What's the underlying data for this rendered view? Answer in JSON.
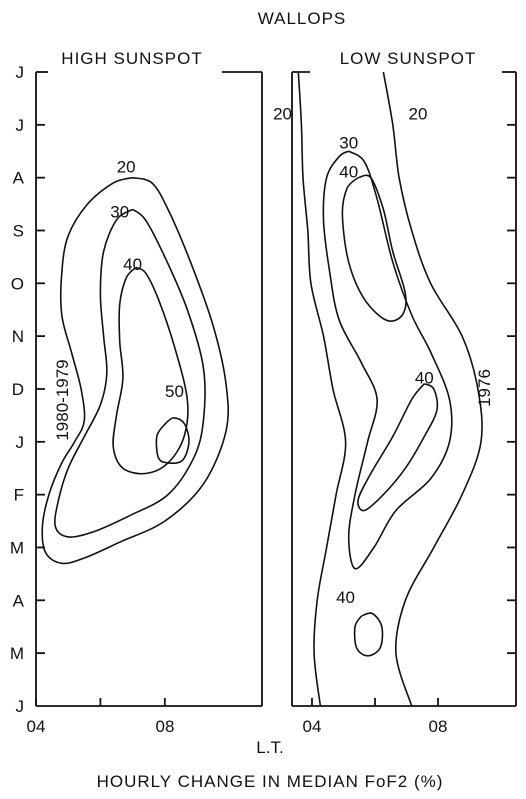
{
  "chart_data": {
    "type": "contour",
    "title": "WALLOPS",
    "caption": "HOURLY CHANGE IN MEDIAN FoF2 (%)",
    "xlabel": "L.T.",
    "colors": {
      "ink": "#111111",
      "background": "#ffffff"
    },
    "panels": [
      {
        "title": "HIGH SUNSPOT",
        "year_label": "1980-1979",
        "x_ticks": [
          "04",
          "08"
        ],
        "y_ticks": [
          "J",
          "J",
          "A",
          "S",
          "O",
          "N",
          "D",
          "J",
          "F",
          "M",
          "A",
          "M",
          "J"
        ],
        "xlim": [
          3,
          10
        ],
        "contours": [
          {
            "level": "20",
            "points": [
              [
                6.0,
                2.0
              ],
              [
                5.4,
                2.1
              ],
              [
                4.6,
                2.5
              ],
              [
                4.0,
                3.1
              ],
              [
                3.8,
                3.8
              ],
              [
                3.8,
                4.6
              ],
              [
                4.1,
                5.3
              ],
              [
                4.4,
                6.0
              ],
              [
                4.5,
                6.6
              ],
              [
                4.2,
                7.0
              ],
              [
                3.8,
                7.4
              ],
              [
                3.4,
                8.0
              ],
              [
                3.2,
                8.6
              ],
              [
                3.3,
                9.1
              ],
              [
                3.8,
                9.3
              ],
              [
                4.5,
                9.2
              ],
              [
                5.6,
                8.9
              ],
              [
                7.0,
                8.5
              ],
              [
                8.2,
                7.8
              ],
              [
                8.9,
                6.8
              ],
              [
                8.9,
                5.9
              ],
              [
                8.5,
                4.8
              ],
              [
                7.8,
                3.6
              ],
              [
                7.1,
                2.6
              ],
              [
                6.6,
                2.1
              ],
              [
                6.0,
                2.0
              ]
            ]
          },
          {
            "level": "30",
            "points": [
              [
                6.0,
                2.6
              ],
              [
                5.5,
                2.8
              ],
              [
                5.1,
                3.4
              ],
              [
                5.0,
                4.2
              ],
              [
                5.1,
                5.0
              ],
              [
                5.2,
                5.7
              ],
              [
                5.0,
                6.3
              ],
              [
                4.5,
                6.9
              ],
              [
                4.0,
                7.5
              ],
              [
                3.7,
                8.1
              ],
              [
                3.6,
                8.6
              ],
              [
                4.0,
                8.8
              ],
              [
                4.8,
                8.7
              ],
              [
                5.9,
                8.4
              ],
              [
                7.1,
                8.0
              ],
              [
                7.9,
                7.3
              ],
              [
                8.2,
                6.6
              ],
              [
                8.2,
                5.6
              ],
              [
                7.7,
                4.5
              ],
              [
                7.0,
                3.5
              ],
              [
                6.4,
                2.8
              ],
              [
                6.0,
                2.6
              ]
            ]
          },
          {
            "level": "40",
            "points": [
              [
                6.1,
                3.7
              ],
              [
                5.8,
                3.9
              ],
              [
                5.6,
                4.4
              ],
              [
                5.6,
                5.1
              ],
              [
                5.7,
                5.8
              ],
              [
                5.5,
                6.5
              ],
              [
                5.4,
                7.1
              ],
              [
                5.7,
                7.5
              ],
              [
                6.4,
                7.6
              ],
              [
                7.1,
                7.4
              ],
              [
                7.6,
                6.9
              ],
              [
                7.7,
                6.2
              ],
              [
                7.3,
                5.2
              ],
              [
                6.8,
                4.3
              ],
              [
                6.4,
                3.8
              ],
              [
                6.1,
                3.7
              ]
            ]
          },
          {
            "level": "50",
            "points": [
              [
                6.95,
                6.7
              ],
              [
                6.75,
                6.9
              ],
              [
                6.8,
                7.3
              ],
              [
                7.1,
                7.4
              ],
              [
                7.55,
                7.35
              ],
              [
                7.75,
                7.0
              ],
              [
                7.6,
                6.65
              ],
              [
                7.25,
                6.55
              ],
              [
                6.95,
                6.7
              ]
            ]
          }
        ]
      },
      {
        "title": "LOW SUNSPOT",
        "year_label": "1976",
        "x_ticks": [
          "04",
          "08"
        ],
        "y_ticks": [],
        "xlim": [
          3,
          10
        ],
        "contours": [
          {
            "level": "20",
            "points": [
              [
                3.2,
                0.0
              ],
              [
                3.3,
                1.0
              ],
              [
                3.35,
                2.0
              ],
              [
                3.5,
                3.0
              ],
              [
                3.6,
                4.0
              ],
              [
                4.0,
                5.0
              ],
              [
                4.3,
                6.0
              ],
              [
                4.7,
                7.0
              ],
              [
                4.4,
                8.0
              ],
              [
                4.1,
                9.0
              ],
              [
                3.8,
                10.0
              ],
              [
                3.7,
                11.0
              ],
              [
                3.9,
                12.0
              ]
            ]
          },
          {
            "level": "20",
            "points": [
              [
                5.9,
                0.0
              ],
              [
                6.2,
                1.0
              ],
              [
                6.4,
                2.0
              ],
              [
                6.8,
                3.0
              ],
              [
                7.4,
                4.0
              ],
              [
                8.4,
                5.0
              ],
              [
                8.9,
                6.0
              ],
              [
                9.0,
                7.0
              ],
              [
                8.4,
                8.0
              ],
              [
                7.5,
                9.0
              ],
              [
                6.6,
                10.0
              ],
              [
                6.3,
                11.0
              ],
              [
                6.8,
                12.0
              ]
            ]
          },
          {
            "level": "30",
            "points": [
              [
                4.8,
                1.5
              ],
              [
                4.5,
                1.6
              ],
              [
                4.1,
                2.0
              ],
              [
                4.0,
                2.8
              ],
              [
                4.2,
                3.8
              ],
              [
                4.5,
                4.7
              ],
              [
                5.2,
                5.5
              ],
              [
                5.7,
                6.2
              ],
              [
                5.4,
                7.0
              ],
              [
                5.0,
                8.0
              ],
              [
                4.8,
                8.8
              ],
              [
                5.0,
                9.4
              ],
              [
                5.6,
                9.0
              ],
              [
                6.3,
                8.3
              ],
              [
                7.4,
                7.7
              ],
              [
                8.0,
                7.0
              ],
              [
                8.0,
                6.2
              ],
              [
                7.4,
                5.3
              ],
              [
                6.8,
                4.6
              ],
              [
                6.2,
                3.6
              ],
              [
                5.7,
                2.4
              ],
              [
                5.3,
                1.7
              ],
              [
                4.8,
                1.5
              ]
            ]
          },
          {
            "level": "40",
            "points": [
              [
                5.1,
                2.0
              ],
              [
                4.75,
                2.2
              ],
              [
                4.6,
                2.7
              ],
              [
                4.8,
                3.6
              ],
              [
                5.3,
                4.3
              ],
              [
                6.0,
                4.7
              ],
              [
                6.5,
                4.6
              ],
              [
                6.6,
                4.2
              ],
              [
                6.2,
                3.4
              ],
              [
                5.9,
                2.6
              ],
              [
                5.5,
                2.0
              ],
              [
                5.1,
                2.0
              ]
            ]
          },
          {
            "level": "40",
            "points": [
              [
                7.2,
                5.9
              ],
              [
                6.8,
                6.2
              ],
              [
                6.2,
                6.9
              ],
              [
                5.5,
                7.6
              ],
              [
                5.1,
                8.1
              ],
              [
                5.3,
                8.3
              ],
              [
                5.9,
                8.0
              ],
              [
                6.6,
                7.5
              ],
              [
                7.2,
                6.9
              ],
              [
                7.6,
                6.4
              ],
              [
                7.5,
                6.0
              ],
              [
                7.2,
                5.9
              ]
            ]
          },
          {
            "level": "40",
            "points": [
              [
                5.2,
                10.3
              ],
              [
                5.0,
                10.5
              ],
              [
                5.05,
                10.9
              ],
              [
                5.4,
                11.05
              ],
              [
                5.8,
                10.9
              ],
              [
                5.85,
                10.5
              ],
              [
                5.55,
                10.25
              ],
              [
                5.2,
                10.3
              ]
            ]
          }
        ]
      }
    ],
    "level_labels": [
      {
        "panel": 0,
        "text": "20",
        "x": 5.8,
        "y": 1.9
      },
      {
        "panel": 0,
        "text": "30",
        "x": 5.6,
        "y": 2.75
      },
      {
        "panel": 0,
        "text": "40",
        "x": 6.0,
        "y": 3.75
      },
      {
        "panel": 0,
        "text": "50",
        "x": 7.3,
        "y": 6.15
      },
      {
        "panel": 1,
        "text": "20",
        "x": 2.7,
        "y": 0.9
      },
      {
        "panel": 1,
        "text": "20",
        "x": 7.0,
        "y": 0.9
      },
      {
        "panel": 1,
        "text": "30",
        "x": 4.8,
        "y": 1.45
      },
      {
        "panel": 1,
        "text": "40",
        "x": 4.8,
        "y": 2.0
      },
      {
        "panel": 1,
        "text": "40",
        "x": 7.2,
        "y": 5.9
      },
      {
        "panel": 1,
        "text": "40",
        "x": 4.7,
        "y": 10.05
      }
    ]
  }
}
